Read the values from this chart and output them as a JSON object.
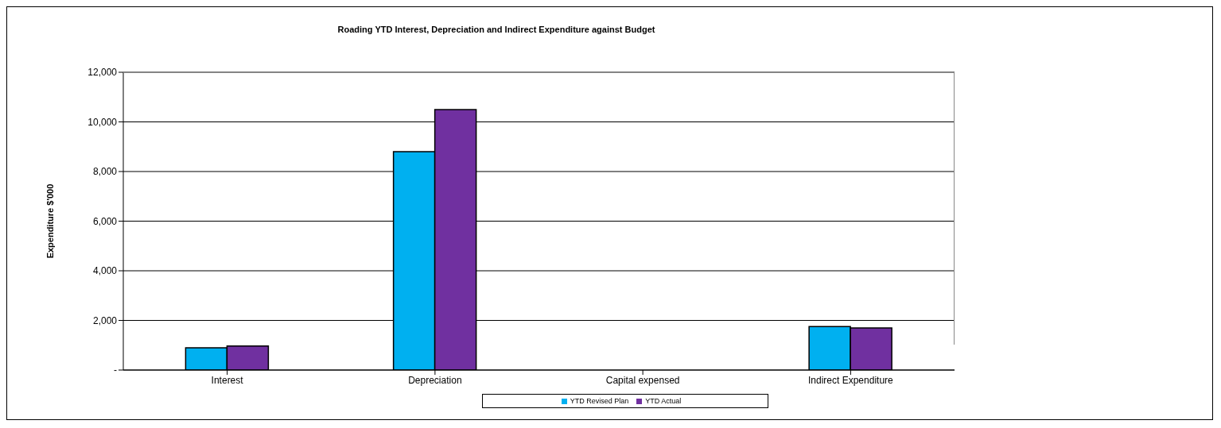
{
  "chart_data": {
    "type": "bar",
    "title": "Roading YTD Interest, Depreciation and Indirect Expenditure against Budget",
    "ylabel": "Expenditure $'000",
    "categories": [
      "Interest",
      "Depreciation",
      "Capital expensed",
      "Indirect Expenditure"
    ],
    "series": [
      {
        "name": "YTD Revised Plan",
        "color": "#00b0f0",
        "values": [
          900,
          8800,
          0,
          1750
        ]
      },
      {
        "name": "YTD Actual",
        "color": "#7030a0",
        "values": [
          970,
          10500,
          0,
          1700
        ]
      }
    ],
    "ylim": [
      0,
      12000
    ],
    "yticks": [
      {
        "value": 0,
        "label": "-"
      },
      {
        "value": 2000,
        "label": "2,000"
      },
      {
        "value": 4000,
        "label": "4,000"
      },
      {
        "value": 6000,
        "label": "6,000"
      },
      {
        "value": 8000,
        "label": "8,000"
      },
      {
        "value": 10000,
        "label": "10,000"
      },
      {
        "value": 12000,
        "label": "12,000"
      }
    ],
    "grid": "y",
    "legend": "bottom"
  }
}
